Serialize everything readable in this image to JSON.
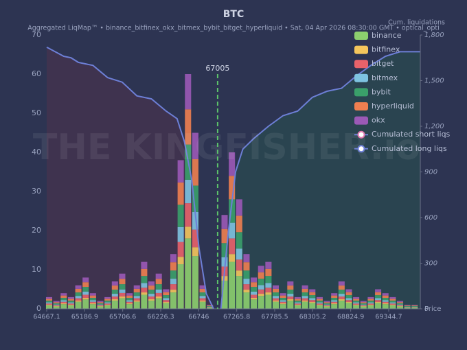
{
  "chart_data": {
    "type": "bar",
    "stacked": true,
    "title": "BTC",
    "subtitle": "Aggregated LiqMap™  •  binance_bitfinex_okx_bitmex_bybit_bitget_hyperliquid  •  Sat, 04 Apr 2026 08:30:00 GMT  •  optical_opti",
    "y2_label": "Cum. liquidations",
    "x_label": "Price",
    "watermark": "THE KINGFISHER.io",
    "current_price": 67005,
    "current_price_label": "67005",
    "xlim": [
      64667.1,
      69777
    ],
    "xticks": [
      64667.1,
      65186.9,
      65706.6,
      66226.3,
      66746.0,
      67265.8,
      67785.5,
      68305.2,
      68824.9,
      69344.7
    ],
    "ylim": [
      0,
      70
    ],
    "yticks": [
      0,
      10,
      20,
      30,
      40,
      50,
      60,
      70
    ],
    "y2lim": [
      0,
      1800
    ],
    "y2ticks": [
      0,
      300,
      600,
      900,
      {
        "value": 1200,
        "label": "1,200"
      },
      {
        "value": 1500,
        "label": "1,500"
      },
      {
        "value": 1800,
        "label": "1,800"
      }
    ],
    "x": [
      64700,
      64800,
      64900,
      65000,
      65100,
      65200,
      65300,
      65400,
      65500,
      65600,
      65700,
      65800,
      65900,
      66000,
      66100,
      66200,
      66300,
      66400,
      66500,
      66600,
      66700,
      66800,
      66900,
      67000,
      67100,
      67200,
      67300,
      67400,
      67500,
      67600,
      67700,
      67800,
      67900,
      68000,
      68100,
      68200,
      68300,
      68400,
      68500,
      68600,
      68700,
      68800,
      68900,
      69000,
      69100,
      69200,
      69300,
      69400,
      69500,
      69600,
      69700
    ],
    "series": [
      {
        "name": "binance",
        "color": "#8ccf6e",
        "values": [
          0.9,
          0.6,
          1.2,
          0.9,
          1.8,
          2.4,
          1.2,
          0.6,
          0.9,
          2.1,
          2.7,
          1.2,
          1.8,
          3.6,
          2.1,
          2.7,
          1.5,
          4.2,
          11.4,
          18,
          13.5,
          1.8,
          0.3,
          0,
          7.2,
          12,
          8.4,
          4.2,
          2.4,
          3.3,
          3.6,
          1.8,
          1.2,
          2.1,
          0.9,
          1.8,
          1.5,
          0.9,
          0.6,
          1.2,
          2.1,
          1.5,
          0.9,
          0.6,
          0.9,
          1.5,
          1.2,
          0.9,
          0.6,
          0.3,
          0.3
        ]
      },
      {
        "name": "bitfinex",
        "color": "#f5c65c",
        "values": [
          0.15,
          0.1,
          0.2,
          0.15,
          0.3,
          0.4,
          0.2,
          0.1,
          0.15,
          0.35,
          0.45,
          0.2,
          0.3,
          0.6,
          0.35,
          0.45,
          0.25,
          0.7,
          1.9,
          3,
          2.25,
          0.3,
          0.05,
          0,
          1.2,
          2,
          1.4,
          0.7,
          0.4,
          0.55,
          0.6,
          0.3,
          0.2,
          0.35,
          0.15,
          0.3,
          0.25,
          0.15,
          0.1,
          0.2,
          0.35,
          0.25,
          0.15,
          0.1,
          0.15,
          0.25,
          0.2,
          0.15,
          0.1,
          0.05,
          0.05
        ]
      },
      {
        "name": "bitget",
        "color": "#e8626a",
        "values": [
          0.3,
          0.2,
          0.4,
          0.3,
          0.6,
          0.8,
          0.4,
          0.2,
          0.3,
          0.7,
          0.9,
          0.4,
          0.6,
          1.2,
          0.7,
          0.9,
          0.5,
          1.4,
          3.8,
          6,
          4.5,
          0.6,
          0.1,
          0,
          2.4,
          4,
          2.8,
          1.4,
          0.8,
          1.1,
          1.2,
          0.6,
          0.4,
          0.7,
          0.3,
          0.6,
          0.5,
          0.3,
          0.2,
          0.4,
          0.7,
          0.5,
          0.3,
          0.2,
          0.3,
          0.5,
          0.4,
          0.3,
          0.2,
          0.1,
          0.1
        ]
      },
      {
        "name": "bitmex",
        "color": "#7ec3e0",
        "values": [
          0.3,
          0.2,
          0.4,
          0.3,
          0.6,
          0.8,
          0.4,
          0.2,
          0.3,
          0.7,
          0.9,
          0.4,
          0.6,
          1.2,
          0.7,
          0.9,
          0.5,
          1.4,
          3.8,
          6,
          4.5,
          0.6,
          0.1,
          0,
          2.4,
          4,
          2.8,
          1.4,
          0.8,
          1.1,
          1.2,
          0.6,
          0.4,
          0.7,
          0.3,
          0.6,
          0.5,
          0.3,
          0.2,
          0.4,
          0.7,
          0.5,
          0.3,
          0.2,
          0.3,
          0.5,
          0.4,
          0.3,
          0.2,
          0.1,
          0.1
        ]
      },
      {
        "name": "bybit",
        "color": "#3aa06a",
        "values": [
          0.45,
          0.3,
          0.6,
          0.45,
          0.9,
          1.2,
          0.6,
          0.3,
          0.45,
          1.05,
          1.35,
          0.6,
          0.9,
          1.8,
          1.05,
          1.35,
          0.75,
          2.1,
          5.7,
          9,
          6.75,
          0.9,
          0.15,
          0,
          3.6,
          6,
          4.2,
          2.1,
          1.2,
          1.65,
          1.8,
          0.9,
          0.6,
          1.05,
          0.45,
          0.9,
          0.75,
          0.45,
          0.3,
          0.6,
          1.05,
          0.75,
          0.45,
          0.3,
          0.45,
          0.75,
          0.6,
          0.45,
          0.3,
          0.15,
          0.15
        ]
      },
      {
        "name": "hyperliquid",
        "color": "#f07f50",
        "values": [
          0.45,
          0.3,
          0.6,
          0.45,
          0.9,
          1.2,
          0.6,
          0.3,
          0.45,
          1.05,
          1.35,
          0.6,
          0.9,
          1.8,
          1.05,
          1.35,
          0.75,
          2.1,
          5.7,
          9,
          6.75,
          0.9,
          0.15,
          0,
          3.6,
          6,
          4.2,
          2.1,
          1.2,
          1.65,
          1.8,
          0.9,
          0.6,
          1.05,
          0.45,
          0.9,
          0.75,
          0.45,
          0.3,
          0.6,
          1.05,
          0.75,
          0.45,
          0.3,
          0.45,
          0.75,
          0.6,
          0.45,
          0.3,
          0.15,
          0.15
        ]
      },
      {
        "name": "okx",
        "color": "#9b59b6",
        "values": [
          0.45,
          0.3,
          0.6,
          0.45,
          0.9,
          1.2,
          0.6,
          0.3,
          0.45,
          1.05,
          1.35,
          0.6,
          0.9,
          1.8,
          1.05,
          1.35,
          0.75,
          2.1,
          5.7,
          9,
          6.75,
          0.9,
          0.15,
          0,
          3.6,
          6,
          4.2,
          2.1,
          1.2,
          1.65,
          1.8,
          0.9,
          0.6,
          1.05,
          0.45,
          0.9,
          0.75,
          0.45,
          0.3,
          0.6,
          1.05,
          0.75,
          0.45,
          0.3,
          0.45,
          0.75,
          0.6,
          0.45,
          0.3,
          0.15,
          0.15
        ]
      },
      {
        "name": "Cumulated short liqs",
        "type": "line",
        "axis": "y2",
        "color": "#6d7fd6",
        "marker_color": "#e07ab0",
        "fill": "#2a4a50",
        "x": [
          67050,
          67150,
          67250,
          67350,
          67500,
          67700,
          67900,
          68100,
          68300,
          68500,
          68700,
          68900,
          69100,
          69300,
          69500,
          69777
        ],
        "values": [
          0,
          500,
          900,
          1050,
          1120,
          1200,
          1270,
          1300,
          1390,
          1430,
          1450,
          1530,
          1600,
          1660,
          1690,
          1690
        ]
      },
      {
        "name": "Cumulated long liqs",
        "type": "line",
        "axis": "y2",
        "color": "#6d7fd6",
        "marker_color": "#6d7fd6",
        "fill": "#46334f",
        "x": [
          64667.1,
          64900,
          65000,
          65100,
          65300,
          65500,
          65700,
          65900,
          66100,
          66300,
          66450,
          66550,
          66650,
          66750,
          66850,
          66950
        ],
        "values": [
          1720,
          1660,
          1650,
          1620,
          1600,
          1520,
          1490,
          1400,
          1380,
          1300,
          1250,
          1100,
          850,
          400,
          100,
          0
        ]
      }
    ]
  }
}
